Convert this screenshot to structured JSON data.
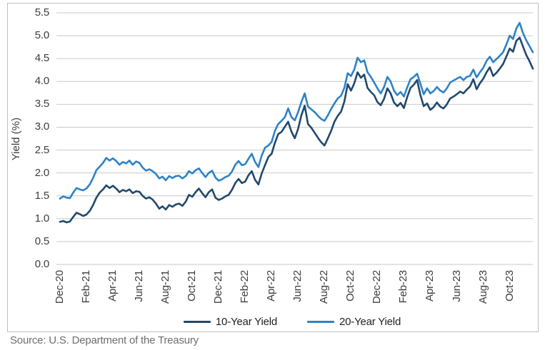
{
  "source": "Source: U.S. Department of the Treasury",
  "colors": {
    "series_10yr": "#20486e",
    "series_20yr": "#2e82c6",
    "gridline": "#c9c9c9",
    "border": "#bfbfbf",
    "tick_text": "#3d3d3d",
    "source_text": "#6e6e6e"
  },
  "chart_data": {
    "type": "line",
    "title": "",
    "xlabel": "",
    "ylabel": "Yield (%)",
    "ylim": [
      0.0,
      5.5
    ],
    "ytick_step": 0.5,
    "ytick_labels": [
      "0.0",
      "0.5",
      "1.0",
      "1.5",
      "2.0",
      "2.5",
      "3.0",
      "3.5",
      "4.0",
      "4.5",
      "5.0",
      "5.5"
    ],
    "xtick_labels": [
      "Dec-20",
      "Feb-21",
      "Apr-21",
      "Jun-21",
      "Aug-21",
      "Oct-21",
      "Dec-21",
      "Feb-22",
      "Apr-22",
      "Jun-22",
      "Aug-22",
      "Oct-22",
      "Dec-22",
      "Feb-23",
      "Apr-23",
      "Jun-23",
      "Aug-23",
      "Oct-23"
    ],
    "xtick_interval_months": 2,
    "points_per_month": 4,
    "grid": "horizontal",
    "legend_position": "bottom",
    "series": [
      {
        "name": "10-Year Yield",
        "color_key": "series_10yr",
        "values": [
          0.93,
          0.95,
          0.92,
          0.94,
          1.04,
          1.13,
          1.1,
          1.06,
          1.09,
          1.17,
          1.3,
          1.46,
          1.57,
          1.64,
          1.73,
          1.67,
          1.72,
          1.66,
          1.58,
          1.63,
          1.6,
          1.64,
          1.56,
          1.6,
          1.59,
          1.5,
          1.44,
          1.47,
          1.42,
          1.33,
          1.22,
          1.27,
          1.2,
          1.3,
          1.26,
          1.31,
          1.33,
          1.28,
          1.37,
          1.52,
          1.48,
          1.58,
          1.66,
          1.56,
          1.47,
          1.58,
          1.64,
          1.46,
          1.41,
          1.44,
          1.49,
          1.52,
          1.63,
          1.78,
          1.87,
          1.78,
          1.81,
          1.95,
          2.04,
          1.85,
          1.75,
          1.99,
          2.17,
          2.35,
          2.42,
          2.66,
          2.85,
          2.9,
          3.01,
          3.12,
          2.9,
          2.76,
          2.96,
          3.26,
          3.47,
          3.07,
          2.99,
          2.88,
          2.77,
          2.67,
          2.6,
          2.76,
          2.92,
          3.12,
          3.25,
          3.34,
          3.56,
          3.94,
          3.8,
          3.96,
          4.2,
          4.08,
          4.15,
          3.86,
          3.77,
          3.7,
          3.55,
          3.48,
          3.62,
          3.85,
          3.74,
          3.54,
          3.46,
          3.53,
          3.42,
          3.66,
          3.86,
          3.93,
          4.03,
          3.7,
          3.46,
          3.52,
          3.38,
          3.44,
          3.54,
          3.45,
          3.41,
          3.5,
          3.63,
          3.67,
          3.72,
          3.78,
          3.74,
          3.82,
          3.89,
          4.05,
          3.83,
          3.96,
          4.06,
          4.2,
          4.31,
          4.12,
          4.19,
          4.28,
          4.38,
          4.55,
          4.72,
          4.65,
          4.89,
          4.96,
          4.77,
          4.58,
          4.44,
          4.28
        ]
      },
      {
        "name": "20-Year Yield",
        "color_key": "series_20yr",
        "values": [
          1.44,
          1.49,
          1.46,
          1.45,
          1.57,
          1.67,
          1.64,
          1.62,
          1.66,
          1.75,
          1.89,
          2.06,
          2.14,
          2.22,
          2.33,
          2.27,
          2.32,
          2.26,
          2.18,
          2.24,
          2.21,
          2.27,
          2.18,
          2.25,
          2.22,
          2.12,
          2.05,
          2.08,
          2.04,
          1.98,
          1.88,
          1.92,
          1.84,
          1.93,
          1.89,
          1.93,
          1.94,
          1.88,
          1.93,
          2.04,
          1.99,
          2.06,
          2.1,
          2.0,
          1.91,
          2.0,
          2.05,
          1.9,
          1.83,
          1.86,
          1.91,
          1.94,
          2.03,
          2.18,
          2.26,
          2.17,
          2.19,
          2.31,
          2.42,
          2.24,
          2.13,
          2.38,
          2.55,
          2.6,
          2.68,
          2.92,
          3.07,
          3.14,
          3.22,
          3.41,
          3.22,
          3.15,
          3.33,
          3.55,
          3.74,
          3.45,
          3.39,
          3.33,
          3.25,
          3.18,
          3.14,
          3.26,
          3.4,
          3.52,
          3.63,
          3.69,
          3.86,
          4.18,
          4.12,
          4.26,
          4.52,
          4.42,
          4.46,
          4.2,
          4.1,
          3.98,
          3.85,
          3.74,
          3.88,
          4.1,
          4.0,
          3.8,
          3.7,
          3.77,
          3.67,
          3.87,
          4.05,
          4.1,
          4.17,
          3.95,
          3.72,
          3.85,
          3.74,
          3.79,
          3.88,
          3.8,
          3.76,
          3.85,
          3.98,
          4.02,
          4.06,
          4.1,
          4.03,
          4.1,
          4.12,
          4.26,
          4.09,
          4.2,
          4.3,
          4.45,
          4.54,
          4.42,
          4.49,
          4.56,
          4.64,
          4.81,
          5.0,
          4.93,
          5.16,
          5.28,
          5.06,
          4.9,
          4.77,
          4.64
        ]
      }
    ]
  }
}
